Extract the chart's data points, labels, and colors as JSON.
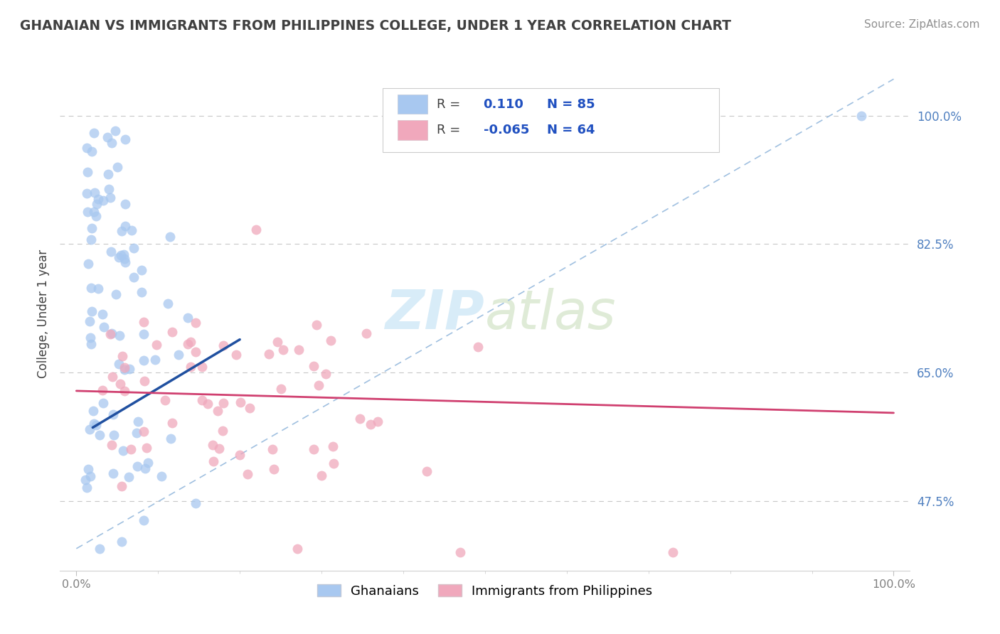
{
  "title": "GHANAIAN VS IMMIGRANTS FROM PHILIPPINES COLLEGE, UNDER 1 YEAR CORRELATION CHART",
  "source": "Source: ZipAtlas.com",
  "ylabel": "College, Under 1 year",
  "legend_label1": "Ghanaians",
  "legend_label2": "Immigrants from Philippines",
  "r1": 0.11,
  "n1": 85,
  "r2": -0.065,
  "n2": 64,
  "color_blue": "#A8C8F0",
  "color_pink": "#F0A8BC",
  "line_blue": "#2050A0",
  "line_pink": "#D04070",
  "dash_line_color": "#A0C0E0",
  "bg_color": "#FFFFFF",
  "watermark_color": "#D8ECF8",
  "title_color": "#404040",
  "source_color": "#909090",
  "ytick_color": "#5080C0",
  "xtick_color": "#808080",
  "legend_r_color": "#404040",
  "legend_val_color": "#2050C0",
  "ytick_labels": [
    "47.5%",
    "65.0%",
    "82.5%",
    "100.0%"
  ],
  "ytick_positions": [
    0.475,
    0.65,
    0.825,
    1.0
  ],
  "xlim": [
    -0.02,
    1.02
  ],
  "ylim": [
    0.38,
    1.08
  ]
}
